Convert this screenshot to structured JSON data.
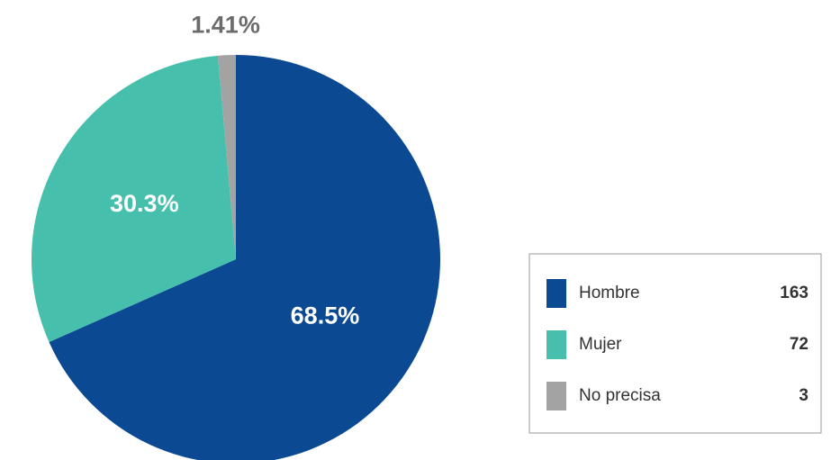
{
  "chart_data": {
    "type": "pie",
    "categories": [
      "Hombre",
      "Mujer",
      "No precisa"
    ],
    "values": [
      68.5,
      30.3,
      1.41
    ],
    "value_labels": [
      "68.5%",
      "30.3%",
      "1.41%"
    ],
    "counts": [
      163,
      72,
      3
    ],
    "colors": [
      "#0b4a93",
      "#47bfad",
      "#a3a3a3"
    ],
    "legend": "right"
  }
}
